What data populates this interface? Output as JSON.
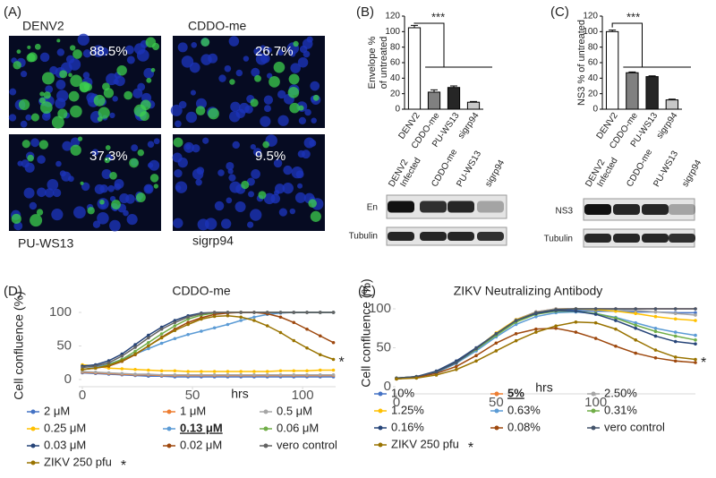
{
  "panel_labels": [
    "(A)",
    "(B)",
    "(C)",
    "(D)",
    "(E)"
  ],
  "images": [
    {
      "label": "DENV2",
      "percent": "88.5%"
    },
    {
      "label": "CDDO-me",
      "percent": "26.7%"
    },
    {
      "label": "PU-WS13",
      "percent": "37.3%"
    },
    {
      "label": "sigrp94",
      "percent": "9.5%"
    }
  ],
  "blots": [
    {
      "lanes": [
        "DENV2",
        "Infected",
        "CDDO-me",
        "PU-WS13",
        "sigrp94"
      ],
      "rows": [
        "En",
        "Tubulin"
      ]
    },
    {
      "lanes": [
        "DENV2",
        "Infected",
        "CDDO-me",
        "PU-WS13",
        "sigrp94"
      ],
      "rows": [
        "NS3",
        "Tubulin"
      ]
    }
  ],
  "chart_data": [
    {
      "type": "bar",
      "ylabel": [
        "Envelope %",
        "of untreated"
      ],
      "categories": [
        "DENV2",
        "CDDO-me",
        "PU-WS13",
        "sigrp94"
      ],
      "values": [
        105,
        22,
        28,
        9
      ],
      "errors": [
        3,
        3,
        2,
        1
      ],
      "colors": [
        "#ffffff",
        "#808080",
        "#262626",
        "#c8c8c8"
      ],
      "ylim": [
        0,
        120
      ],
      "yticks": [
        0,
        20,
        40,
        60,
        80,
        100,
        120
      ],
      "significance": "***"
    },
    {
      "type": "bar",
      "ylabel": "NS3 % of untreated",
      "categories": [
        "DENV2",
        "CDDO-me",
        "PU-WS13",
        "sigrp94"
      ],
      "values": [
        100,
        47,
        42,
        12
      ],
      "errors": [
        2,
        1,
        1,
        1
      ],
      "colors": [
        "#ffffff",
        "#808080",
        "#262626",
        "#c8c8c8"
      ],
      "ylim": [
        0,
        120
      ],
      "yticks": [
        0,
        20,
        40,
        60,
        80,
        100,
        120
      ],
      "significance": "***"
    },
    {
      "type": "line",
      "title": "CDDO-me",
      "xlabel": "hrs",
      "ylabel": "Cell confluence (%)",
      "x": [
        0,
        6,
        12,
        18,
        24,
        30,
        36,
        42,
        48,
        54,
        60,
        66,
        72,
        78,
        84,
        90,
        96,
        102,
        108,
        114
      ],
      "xlim": [
        0,
        115
      ],
      "xticks": [
        0,
        50,
        100
      ],
      "ylim": [
        0,
        100
      ],
      "yticks": [
        0,
        50,
        100
      ],
      "series": [
        {
          "name": "2 μM",
          "color": "#4472c4",
          "values": [
            10,
            9,
            8,
            7,
            6,
            5,
            5,
            4,
            4,
            4,
            4,
            4,
            4,
            4,
            4,
            4,
            4,
            4,
            4,
            4
          ]
        },
        {
          "name": "1 μM",
          "color": "#ed7d31",
          "values": [
            11,
            10,
            9,
            8,
            7,
            7,
            6,
            6,
            6,
            6,
            6,
            6,
            6,
            6,
            6,
            6,
            6,
            6,
            6,
            6
          ]
        },
        {
          "name": "0.5 μM",
          "color": "#a5a5a5",
          "values": [
            12,
            11,
            10,
            9,
            8,
            8,
            7,
            7,
            7,
            7,
            7,
            7,
            7,
            7,
            7,
            7,
            7,
            7,
            7,
            7
          ]
        },
        {
          "name": "0.25 μM",
          "color": "#ffc000",
          "values": [
            22,
            20,
            17,
            16,
            15,
            14,
            13,
            13,
            12,
            12,
            12,
            12,
            12,
            12,
            12,
            13,
            13,
            13,
            14,
            14
          ]
        },
        {
          "name": "0.13 μM",
          "color": "#5b9bd5",
          "bold": true,
          "values": [
            15,
            18,
            23,
            30,
            38,
            46,
            54,
            61,
            67,
            72,
            77,
            82,
            88,
            93,
            97,
            99,
            100,
            100,
            100,
            100
          ]
        },
        {
          "name": "0.06 μM",
          "color": "#70ad47",
          "values": [
            15,
            17,
            22,
            30,
            42,
            55,
            68,
            80,
            90,
            96,
            99,
            100,
            100,
            100,
            100,
            100,
            100,
            100,
            100,
            100
          ]
        },
        {
          "name": "0.03 μM",
          "color": "#264478",
          "values": [
            20,
            22,
            28,
            38,
            52,
            66,
            78,
            88,
            95,
            99,
            100,
            100,
            100,
            100,
            100,
            100,
            100,
            100,
            100,
            100
          ]
        },
        {
          "name": "0.02 μM",
          "color": "#9e480e",
          "values": [
            15,
            17,
            20,
            27,
            37,
            50,
            63,
            75,
            85,
            92,
            97,
            99,
            100,
            100,
            98,
            93,
            85,
            75,
            65,
            55
          ]
        },
        {
          "name": "vero control",
          "color": "#636363",
          "values": [
            18,
            20,
            25,
            35,
            48,
            62,
            75,
            85,
            93,
            98,
            100,
            100,
            100,
            100,
            100,
            100,
            100,
            100,
            100,
            100
          ]
        },
        {
          "name": "ZIKV 250 pfu",
          "color": "#997300",
          "note": "*",
          "values": [
            15,
            17,
            21,
            28,
            38,
            50,
            62,
            73,
            82,
            90,
            94,
            95,
            93,
            88,
            80,
            70,
            58,
            47,
            37,
            30
          ]
        }
      ]
    },
    {
      "type": "line",
      "title": "ZIKV Neutralizing Antibody",
      "xlabel": "hrs",
      "ylabel": "Cell confluence (%)",
      "x": [
        0,
        10,
        20,
        30,
        40,
        50,
        60,
        70,
        80,
        90,
        100,
        110,
        120,
        130,
        140,
        150
      ],
      "xlim": [
        0,
        150
      ],
      "xticks": [
        0,
        50,
        100
      ],
      "ylim": [
        0,
        100
      ],
      "yticks": [
        0,
        50,
        100
      ],
      "series": [
        {
          "name": "10%",
          "color": "#4472c4",
          "values": [
            10,
            12,
            18,
            30,
            48,
            68,
            86,
            96,
            99,
            98,
            97,
            97,
            96,
            96,
            95,
            95
          ]
        },
        {
          "name": "5%",
          "color": "#ed7d31",
          "bold": true,
          "values": [
            10,
            12,
            18,
            30,
            48,
            68,
            86,
            96,
            100,
            100,
            100,
            100,
            100,
            100,
            100,
            100
          ]
        },
        {
          "name": "2.50%",
          "color": "#a5a5a5",
          "values": [
            10,
            12,
            18,
            30,
            48,
            68,
            86,
            96,
            100,
            100,
            100,
            99,
            98,
            96,
            94,
            92
          ]
        },
        {
          "name": "1.25%",
          "color": "#ffc000",
          "values": [
            10,
            12,
            19,
            31,
            49,
            69,
            86,
            95,
            99,
            100,
            99,
            97,
            94,
            90,
            87,
            85
          ]
        },
        {
          "name": "0.63%",
          "color": "#5b9bd5",
          "values": [
            10,
            12,
            18,
            30,
            46,
            64,
            80,
            90,
            95,
            96,
            94,
            89,
            82,
            75,
            70,
            66
          ]
        },
        {
          "name": "0.31%",
          "color": "#70ad47",
          "values": [
            11,
            13,
            19,
            31,
            48,
            66,
            83,
            93,
            97,
            97,
            94,
            88,
            79,
            71,
            65,
            60
          ]
        },
        {
          "name": "0.16%",
          "color": "#264478",
          "values": [
            11,
            13,
            20,
            33,
            50,
            68,
            85,
            94,
            98,
            97,
            93,
            85,
            75,
            65,
            58,
            55
          ]
        },
        {
          "name": "0.08%",
          "color": "#9e480e",
          "values": [
            10,
            12,
            17,
            26,
            40,
            56,
            68,
            74,
            75,
            70,
            62,
            52,
            43,
            37,
            33,
            31
          ]
        },
        {
          "name": "vero control",
          "color": "#43536a",
          "values": [
            11,
            13,
            19,
            31,
            49,
            68,
            85,
            95,
            99,
            100,
            100,
            100,
            100,
            100,
            100,
            100
          ]
        },
        {
          "name": "ZIKV 250 pfu",
          "color": "#997300",
          "note": "*",
          "values": [
            10,
            11,
            15,
            22,
            33,
            46,
            59,
            70,
            78,
            83,
            82,
            74,
            60,
            47,
            38,
            35
          ]
        }
      ]
    }
  ]
}
